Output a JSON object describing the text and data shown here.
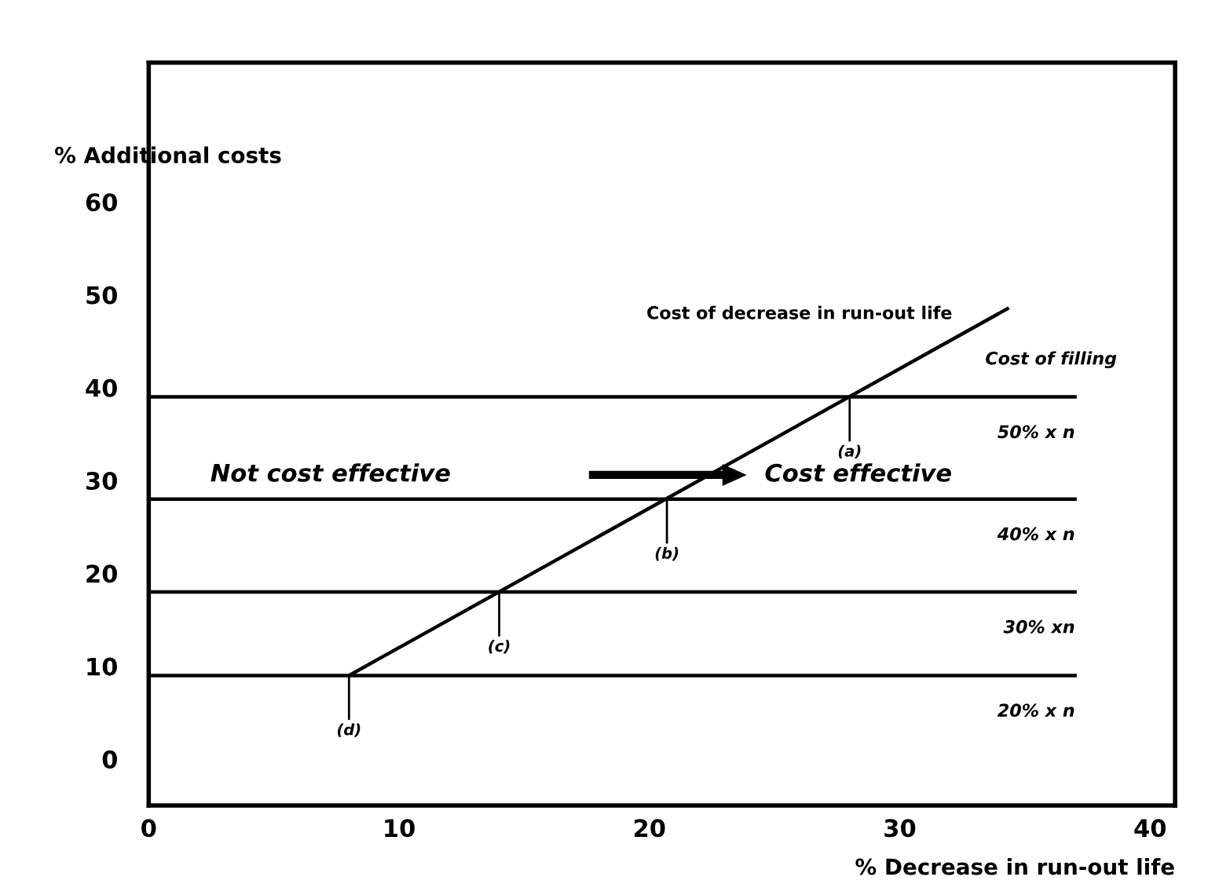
{
  "chart_data": {
    "type": "line",
    "xlabel": "% Decrease in run-out life",
    "ylabel": "% Additional costs",
    "xlim": [
      0,
      41
    ],
    "ylim": [
      -5,
      75
    ],
    "xticks": [
      0,
      10,
      20,
      30,
      40
    ],
    "yticks": [
      0,
      10,
      20,
      30,
      40,
      50,
      60
    ],
    "grid": false,
    "marker": "none",
    "line_style": "solid",
    "series": [
      {
        "name": "Cost of decrease in run-out life",
        "color": "#000000",
        "x": [
          8,
          34.3
        ],
        "values": [
          9,
          48.5
        ]
      },
      {
        "name": "50% x n",
        "color": "#000000",
        "x": [
          0,
          37
        ],
        "values": [
          39,
          39
        ]
      },
      {
        "name": "40% x n",
        "color": "#000000",
        "x": [
          0,
          37
        ],
        "values": [
          28,
          28
        ]
      },
      {
        "name": "30% xn",
        "color": "#000000",
        "x": [
          0,
          37
        ],
        "values": [
          18,
          18
        ]
      },
      {
        "name": "20% x n",
        "color": "#000000",
        "x": [
          0,
          37
        ],
        "values": [
          9,
          9
        ]
      }
    ],
    "annotations": [
      {
        "text": "(a)",
        "x": 28,
        "y": 39
      },
      {
        "text": "(b)",
        "x": 20.7,
        "y": 28
      },
      {
        "text": "(c)",
        "x": 14,
        "y": 18
      },
      {
        "text": "(d)",
        "x": 8,
        "y": 9
      },
      "Cost of filling",
      "Not cost effective",
      "Cost effective"
    ]
  }
}
